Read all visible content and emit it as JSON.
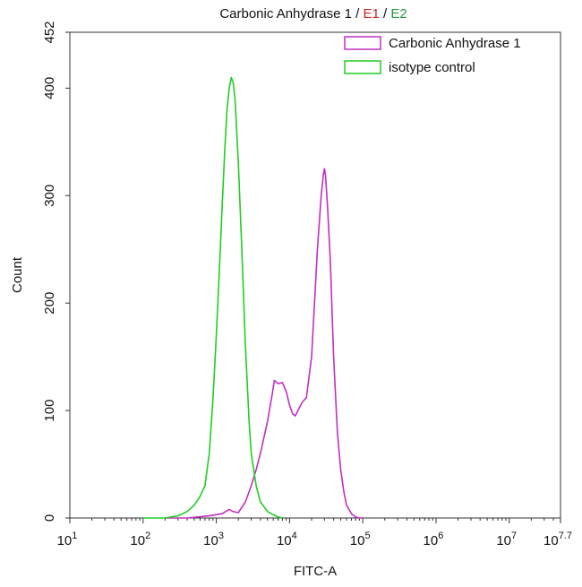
{
  "chart_data": {
    "type": "line",
    "title_parts": [
      {
        "text": "Carbonic Anhydrase 1",
        "color": "#111111"
      },
      {
        "text": " / ",
        "color": "#111111"
      },
      {
        "text": "E1",
        "color": "#cc2222"
      },
      {
        "text": " / ",
        "color": "#111111"
      },
      {
        "text": "E2",
        "color": "#22993a"
      }
    ],
    "xlabel": "FITC-A",
    "ylabel": "Count",
    "x_scale": "log",
    "xlim": [
      10,
      50118723
    ],
    "ylim": [
      0,
      452
    ],
    "x_ticks": [
      {
        "value": 10,
        "base": "10",
        "exp": "1"
      },
      {
        "value": 100,
        "base": "10",
        "exp": "2"
      },
      {
        "value": 1000,
        "base": "10",
        "exp": "3"
      },
      {
        "value": 10000,
        "base": "10",
        "exp": "4"
      },
      {
        "value": 100000,
        "base": "10",
        "exp": "5"
      },
      {
        "value": 1000000,
        "base": "10",
        "exp": "6"
      },
      {
        "value": 10000000,
        "base": "10",
        "exp": "7"
      },
      {
        "value": 50118723,
        "base": "10",
        "exp": "7.7"
      }
    ],
    "y_ticks": [
      {
        "value": 0,
        "label": "0"
      },
      {
        "value": 100,
        "label": "100"
      },
      {
        "value": 200,
        "label": "200"
      },
      {
        "value": 300,
        "label": "300"
      },
      {
        "value": 400,
        "label": "400"
      },
      {
        "value": 452,
        "label": "452"
      }
    ],
    "legend_position": "top-right",
    "series": [
      {
        "name": "Carbonic Anhydrase 1",
        "color": "#c030c0",
        "x": [
          200,
          400,
          800,
          1200,
          1500,
          1700,
          2000,
          2500,
          3000,
          3500,
          4000,
          5000,
          5800,
          6200,
          7000,
          8000,
          9000,
          10000,
          11000,
          12000,
          13000,
          15000,
          17000,
          20000,
          24000,
          27000,
          29000,
          30000,
          31000,
          33000,
          36000,
          40000,
          45000,
          50000,
          55000,
          60000,
          70000,
          80000,
          90000,
          100000
        ],
        "y": [
          0,
          0,
          2,
          4,
          8,
          6,
          5,
          15,
          30,
          45,
          60,
          90,
          115,
          128,
          125,
          126,
          118,
          105,
          97,
          95,
          100,
          108,
          112,
          150,
          250,
          300,
          320,
          325,
          318,
          290,
          240,
          150,
          80,
          45,
          25,
          12,
          4,
          1,
          0,
          0
        ]
      },
      {
        "name": "isotype control",
        "color": "#22cc22",
        "x": [
          100,
          200,
          300,
          400,
          500,
          600,
          700,
          800,
          900,
          1000,
          1100,
          1200,
          1300,
          1400,
          1500,
          1600,
          1700,
          1800,
          2000,
          2200,
          2500,
          2800,
          3000,
          3500,
          4000,
          5000,
          6000,
          7000,
          8000
        ],
        "y": [
          0,
          0,
          2,
          6,
          12,
          20,
          30,
          60,
          110,
          170,
          230,
          290,
          340,
          380,
          400,
          410,
          405,
          390,
          330,
          260,
          160,
          90,
          60,
          30,
          15,
          6,
          3,
          1,
          0
        ]
      }
    ]
  }
}
